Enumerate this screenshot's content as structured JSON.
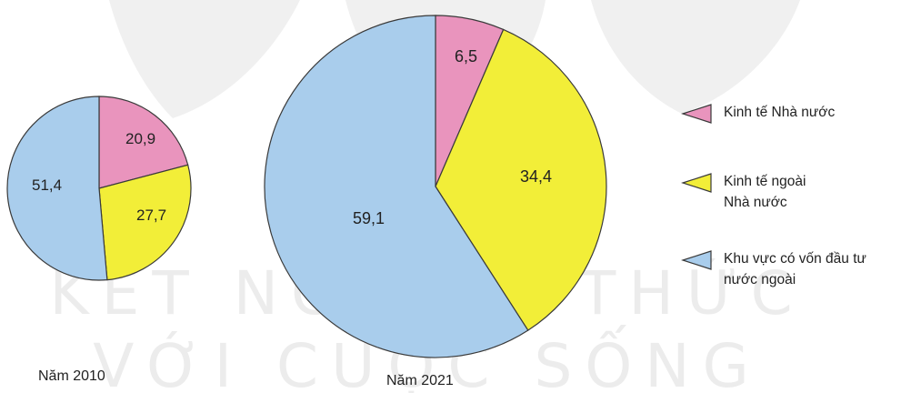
{
  "chart_data": [
    {
      "type": "pie",
      "title": "Năm 2010",
      "categories": [
        "Kinh tế Nhà nước",
        "Kinh tế ngoài Nhà nước",
        "Khu vực có vốn đầu tư nước ngoài"
      ],
      "values": [
        20.9,
        27.7,
        51.4
      ],
      "value_labels": [
        "20,9",
        "27,7",
        "51,4"
      ]
    },
    {
      "type": "pie",
      "title": "Năm 2021",
      "categories": [
        "Kinh tế Nhà nước",
        "Kinh tế ngoài Nhà nước",
        "Khu vực có vốn đầu tư nước ngoài"
      ],
      "values": [
        6.5,
        34.4,
        59.1
      ],
      "value_labels": [
        "6,5",
        "34,4",
        "59,1"
      ]
    }
  ],
  "legend": {
    "placement": "right",
    "items": [
      {
        "label_line1": "Kinh tế Nhà nước",
        "label_line2": "",
        "color": "#e994bd"
      },
      {
        "label_line1": "Kinh tế ngoài",
        "label_line2": "Nhà nước",
        "color": "#f2ee38"
      },
      {
        "label_line1": "Khu vực có vốn đầu tư",
        "label_line2": "nước ngoài",
        "color": "#a9cdec"
      }
    ]
  },
  "watermark": {
    "line1": "KẾT NỐI TRI THỨC",
    "line2": "VỚI CUỘC SỐNG"
  },
  "colors": {
    "state": "#e994bd",
    "non_state": "#f2ee38",
    "fdi": "#a9cdec",
    "outline": "#3a3a3a",
    "watermark": "#ececec"
  }
}
